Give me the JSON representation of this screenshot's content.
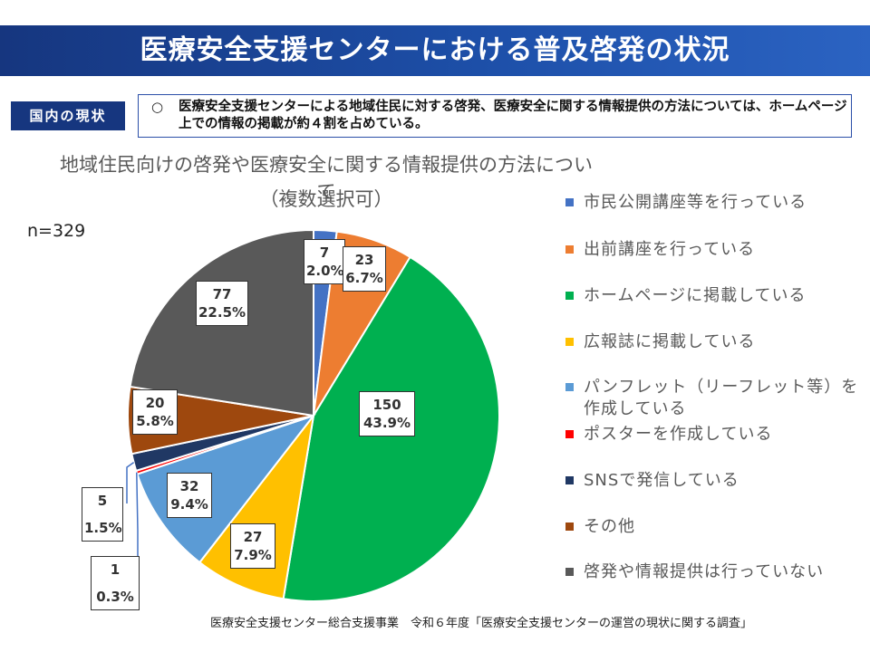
{
  "header": {
    "title": "医療安全支援センターにおける普及啓発の状況",
    "section_tag": "国内の現状",
    "summary_mark": "○",
    "summary_text": "医療安全支援センターによる地域住民に対する啓発、医療安全に関する情報提供の方法については、ホームページ上での情報の掲載が約４割を占めている。"
  },
  "n_label": "n=329",
  "source_note": "医療安全支援センター総合支援事業　令和６年度「医療安全支援センターの運営の現状に関する調査」",
  "chart_data": {
    "type": "pie",
    "title": "地域住民向けの啓発や医療安全に関する情報提供の方法について",
    "subtitle": "（複数選択可）",
    "total_label": "n=329",
    "slices": [
      {
        "label": "市民公開講座等を行っている",
        "count": "7",
        "percent": "2.0%",
        "value": 2.0,
        "color": "#4472c4"
      },
      {
        "label": "出前講座を行っている",
        "count": "23",
        "percent": "6.7%",
        "value": 6.7,
        "color": "#ed7d31"
      },
      {
        "label": "ホームページに掲載している",
        "count": "150",
        "percent": "43.9%",
        "value": 43.9,
        "color": "#00b050"
      },
      {
        "label": "広報誌に掲載している",
        "count": "27",
        "percent": "7.9%",
        "value": 7.9,
        "color": "#ffc000"
      },
      {
        "label": "パンフレット（リーフレット等）を作成している",
        "count": "32",
        "percent": "9.4%",
        "value": 9.4,
        "color": "#5b9bd5"
      },
      {
        "label": "ポスターを作成している",
        "count": "1",
        "percent": "0.3%",
        "value": 0.3,
        "color": "#ff0000"
      },
      {
        "label": "SNSで発信している",
        "count": "5",
        "percent": "1.5%",
        "value": 1.5,
        "color": "#203864"
      },
      {
        "label": "その他",
        "count": "20",
        "percent": "5.8%",
        "value": 5.8,
        "color": "#9e480e"
      },
      {
        "label": "啓発や情報提供は行っていない",
        "count": "77",
        "percent": "22.5%",
        "value": 22.5,
        "color": "#595959"
      }
    ]
  }
}
